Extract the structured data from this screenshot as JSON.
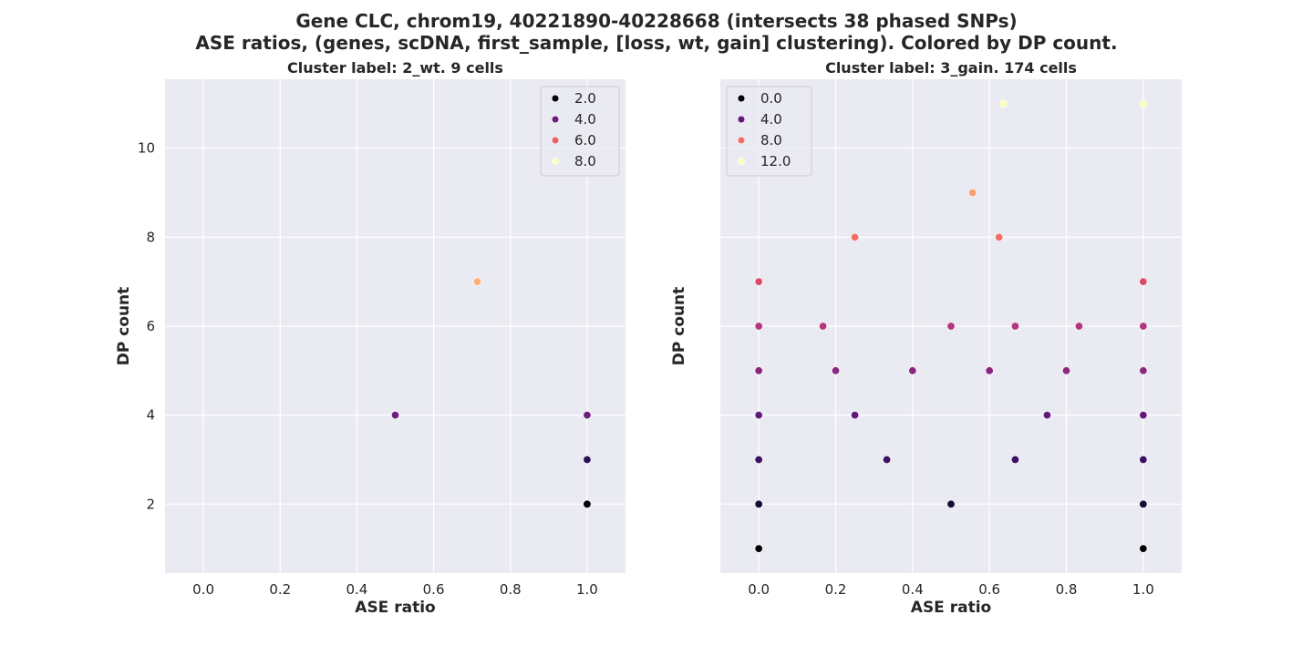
{
  "figure": {
    "title_line1": "Gene CLC, chrom19, 40221890-40228668 (intersects 38 phased SNPs)",
    "title_line2": "ASE ratios, (genes, scDNA, first_sample, [loss, wt, gain] clustering). Colored by DP count."
  },
  "chart_data": [
    {
      "type": "scatter",
      "title": "Cluster label: 2_wt. 9 cells",
      "xlabel": "ASE ratio",
      "ylabel": "DP count",
      "xlim": [
        -0.1,
        1.1
      ],
      "ylim": [
        0.45,
        11.55
      ],
      "xticks": [
        "0.0",
        "0.2",
        "0.4",
        "0.6",
        "0.8",
        "1.0"
      ],
      "yticks": [
        "2",
        "4",
        "6",
        "8",
        "10"
      ],
      "grid": true,
      "legend_position": "top-right",
      "colormap": "magma",
      "color_range": [
        2,
        8
      ],
      "legend": [
        {
          "label": "2.0",
          "value": 2
        },
        {
          "label": "4.0",
          "value": 4
        },
        {
          "label": "6.0",
          "value": 6
        },
        {
          "label": "8.0",
          "value": 8
        }
      ],
      "points": [
        {
          "x": 0.5,
          "y": 4,
          "color_value": 4
        },
        {
          "x": 0.714,
          "y": 7,
          "color_value": 7
        },
        {
          "x": 1.0,
          "y": 2,
          "color_value": 2
        },
        {
          "x": 1.0,
          "y": 3,
          "color_value": 3
        },
        {
          "x": 1.0,
          "y": 4,
          "color_value": 4
        }
      ]
    },
    {
      "type": "scatter",
      "title": "Cluster label: 3_gain. 174 cells",
      "xlabel": "ASE ratio",
      "ylabel": "DP count",
      "xlim": [
        -0.1,
        1.1
      ],
      "ylim": [
        0.45,
        11.55
      ],
      "xticks": [
        "0.0",
        "0.2",
        "0.4",
        "0.6",
        "0.8",
        "1.0"
      ],
      "yticks": [],
      "grid": true,
      "legend_position": "top-left",
      "colormap": "magma",
      "color_range": [
        1,
        11
      ],
      "legend": [
        {
          "label": "0.0",
          "value": 0
        },
        {
          "label": "4.0",
          "value": 4
        },
        {
          "label": "8.0",
          "value": 8
        },
        {
          "label": "12.0",
          "value": 12
        }
      ],
      "points": [
        {
          "x": 0.0,
          "y": 1,
          "color_value": 1
        },
        {
          "x": 0.0,
          "y": 2,
          "color_value": 2
        },
        {
          "x": 0.0,
          "y": 3,
          "color_value": 3
        },
        {
          "x": 0.0,
          "y": 4,
          "color_value": 4
        },
        {
          "x": 0.0,
          "y": 5,
          "color_value": 5
        },
        {
          "x": 0.0,
          "y": 6,
          "color_value": 6
        },
        {
          "x": 0.0,
          "y": 7,
          "color_value": 7
        },
        {
          "x": 0.167,
          "y": 6,
          "color_value": 6
        },
        {
          "x": 0.2,
          "y": 5,
          "color_value": 5
        },
        {
          "x": 0.25,
          "y": 4,
          "color_value": 4
        },
        {
          "x": 0.25,
          "y": 8,
          "color_value": 8
        },
        {
          "x": 0.333,
          "y": 3,
          "color_value": 3
        },
        {
          "x": 0.4,
          "y": 5,
          "color_value": 5
        },
        {
          "x": 0.5,
          "y": 2,
          "color_value": 2
        },
        {
          "x": 0.5,
          "y": 6,
          "color_value": 6
        },
        {
          "x": 0.556,
          "y": 9,
          "color_value": 9
        },
        {
          "x": 0.6,
          "y": 5,
          "color_value": 5
        },
        {
          "x": 0.625,
          "y": 8,
          "color_value": 8
        },
        {
          "x": 0.636,
          "y": 11,
          "color_value": 11
        },
        {
          "x": 0.667,
          "y": 3,
          "color_value": 3
        },
        {
          "x": 0.667,
          "y": 6,
          "color_value": 6
        },
        {
          "x": 0.75,
          "y": 4,
          "color_value": 4
        },
        {
          "x": 0.8,
          "y": 5,
          "color_value": 5
        },
        {
          "x": 0.833,
          "y": 6,
          "color_value": 6
        },
        {
          "x": 1.0,
          "y": 1,
          "color_value": 1
        },
        {
          "x": 1.0,
          "y": 2,
          "color_value": 2
        },
        {
          "x": 1.0,
          "y": 3,
          "color_value": 3
        },
        {
          "x": 1.0,
          "y": 4,
          "color_value": 4
        },
        {
          "x": 1.0,
          "y": 5,
          "color_value": 5
        },
        {
          "x": 1.0,
          "y": 6,
          "color_value": 6
        },
        {
          "x": 1.0,
          "y": 7,
          "color_value": 7
        },
        {
          "x": 1.0,
          "y": 11,
          "color_value": 11
        }
      ]
    }
  ]
}
